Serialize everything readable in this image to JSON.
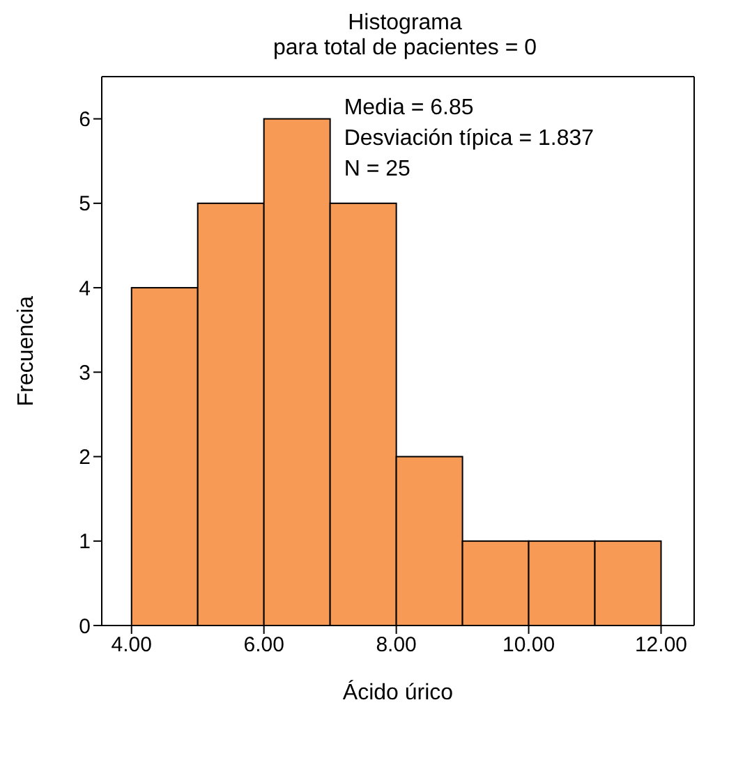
{
  "chart_data": {
    "type": "histogram",
    "title": "Histograma",
    "subtitle": "para total de pacientes = 0",
    "xlabel": "Ácido úrico",
    "ylabel": "Frecuencia",
    "bins": [
      4,
      5,
      6,
      7,
      8,
      9,
      10,
      11,
      12
    ],
    "values": [
      4,
      5,
      6,
      5,
      2,
      1,
      1,
      1
    ],
    "color": "#f79a55",
    "xlim": [
      3.55,
      12.5
    ],
    "xticks": [
      {
        "value": 4,
        "label": "4.00"
      },
      {
        "value": 6,
        "label": "6.00"
      },
      {
        "value": 8,
        "label": "8.00"
      },
      {
        "value": 10,
        "label": "10.00"
      },
      {
        "value": 12,
        "label": "12.00"
      }
    ],
    "ylim": [
      0,
      6.5
    ],
    "yticks": [
      0,
      1,
      2,
      3,
      4,
      5,
      6
    ],
    "annotations": [
      "Media = 6.85",
      "Desviación típica = 1.837",
      "N = 25"
    ],
    "grid": false,
    "legend": false
  }
}
